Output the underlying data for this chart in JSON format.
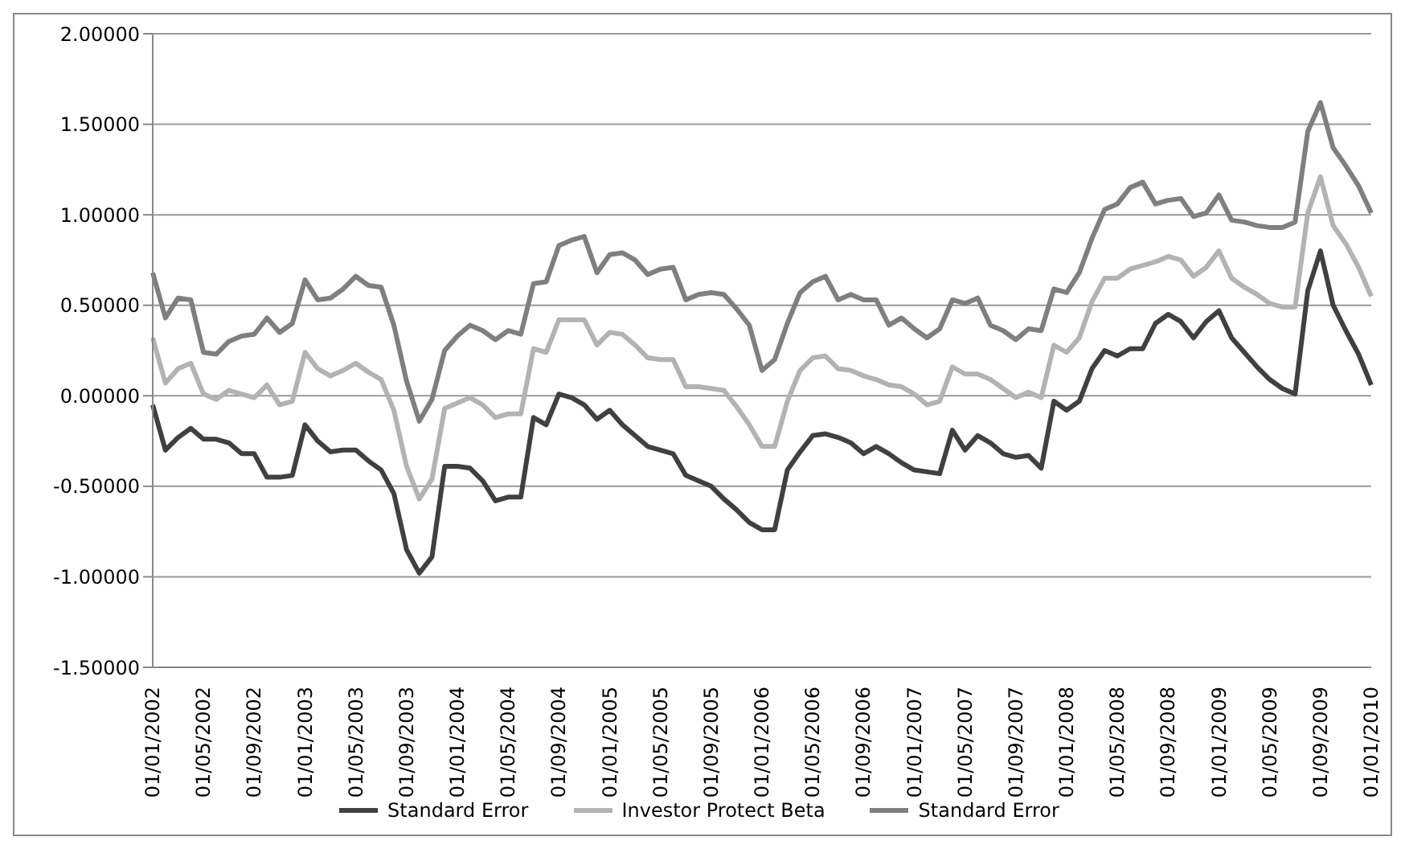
{
  "chart_data": {
    "type": "line",
    "categories": [
      "01/01/2002",
      null,
      null,
      null,
      "01/05/2002",
      null,
      null,
      null,
      "01/09/2002",
      null,
      null,
      null,
      "01/01/2003",
      null,
      null,
      null,
      "01/05/2003",
      null,
      null,
      null,
      "01/09/2003",
      null,
      null,
      null,
      "01/01/2004",
      null,
      null,
      null,
      "01/05/2004",
      null,
      null,
      null,
      "01/09/2004",
      null,
      null,
      null,
      "01/01/2005",
      null,
      null,
      null,
      "01/05/2005",
      null,
      null,
      null,
      "01/09/2005",
      null,
      null,
      null,
      "01/01/2006",
      null,
      null,
      null,
      "01/05/2006",
      null,
      null,
      null,
      "01/09/2006",
      null,
      null,
      null,
      "01/01/2007",
      null,
      null,
      null,
      "01/05/2007",
      null,
      null,
      null,
      "01/09/2007",
      null,
      null,
      null,
      "01/01/2008",
      null,
      null,
      null,
      "01/05/2008",
      null,
      null,
      null,
      "01/09/2008",
      null,
      null,
      null,
      "01/01/2009",
      null,
      null,
      null,
      "01/05/2009",
      null,
      null,
      null,
      "01/09/2009",
      null,
      null,
      null,
      "01/01/2010"
    ],
    "series": [
      {
        "name": "Standard Error",
        "color": "#404040",
        "values": [
          -0.05,
          -0.3,
          -0.23,
          -0.18,
          -0.24,
          -0.24,
          -0.26,
          -0.32,
          -0.32,
          -0.45,
          -0.45,
          -0.44,
          -0.16,
          -0.25,
          -0.31,
          -0.3,
          -0.3,
          -0.36,
          -0.41,
          -0.54,
          -0.85,
          -0.98,
          -0.89,
          -0.39,
          -0.39,
          -0.4,
          -0.47,
          -0.58,
          -0.56,
          -0.56,
          -0.12,
          -0.16,
          0.01,
          -0.01,
          -0.05,
          -0.13,
          -0.08,
          -0.16,
          -0.22,
          -0.28,
          -0.3,
          -0.32,
          -0.44,
          -0.47,
          -0.5,
          -0.57,
          -0.63,
          -0.7,
          -0.74,
          -0.74,
          -0.41,
          -0.31,
          -0.22,
          -0.21,
          -0.23,
          -0.26,
          -0.32,
          -0.28,
          -0.32,
          -0.37,
          -0.41,
          -0.42,
          -0.43,
          -0.19,
          -0.3,
          -0.22,
          -0.26,
          -0.32,
          -0.34,
          -0.33,
          -0.4,
          -0.03,
          -0.08,
          -0.03,
          0.15,
          0.25,
          0.22,
          0.26,
          0.26,
          0.4,
          0.45,
          0.41,
          0.32,
          0.41,
          0.47,
          0.32,
          0.24,
          0.16,
          0.09,
          0.04,
          0.01,
          0.58,
          0.8,
          0.5,
          0.36,
          0.23,
          0.06
        ]
      },
      {
        "name": "Investor Protect Beta",
        "color": "#b3b3b3",
        "values": [
          0.32,
          0.07,
          0.15,
          0.18,
          0.01,
          -0.02,
          0.03,
          0.01,
          -0.01,
          0.06,
          -0.05,
          -0.03,
          0.24,
          0.15,
          0.11,
          0.14,
          0.18,
          0.13,
          0.09,
          -0.08,
          -0.39,
          -0.57,
          -0.46,
          -0.07,
          -0.04,
          -0.01,
          -0.05,
          -0.12,
          -0.1,
          -0.1,
          0.26,
          0.24,
          0.42,
          0.42,
          0.42,
          0.28,
          0.35,
          0.34,
          0.28,
          0.21,
          0.2,
          0.2,
          0.05,
          0.05,
          0.04,
          0.03,
          -0.06,
          -0.16,
          -0.28,
          -0.28,
          -0.03,
          0.14,
          0.21,
          0.22,
          0.15,
          0.14,
          0.11,
          0.09,
          0.06,
          0.05,
          0.01,
          -0.05,
          -0.03,
          0.16,
          0.12,
          0.12,
          0.09,
          0.04,
          -0.01,
          0.02,
          -0.01,
          0.28,
          0.24,
          0.32,
          0.52,
          0.65,
          0.65,
          0.7,
          0.72,
          0.74,
          0.77,
          0.75,
          0.66,
          0.71,
          0.8,
          0.65,
          0.6,
          0.56,
          0.51,
          0.49,
          0.49,
          1.01,
          1.21,
          0.94,
          0.84,
          0.71,
          0.55
        ]
      },
      {
        "name": "Standard Error",
        "color": "#7f7f7f",
        "values": [
          0.68,
          0.43,
          0.54,
          0.53,
          0.24,
          0.23,
          0.3,
          0.33,
          0.34,
          0.43,
          0.35,
          0.4,
          0.64,
          0.53,
          0.54,
          0.59,
          0.66,
          0.61,
          0.6,
          0.39,
          0.08,
          -0.14,
          -0.02,
          0.25,
          0.33,
          0.39,
          0.36,
          0.31,
          0.36,
          0.34,
          0.62,
          0.63,
          0.83,
          0.86,
          0.88,
          0.68,
          0.78,
          0.79,
          0.75,
          0.67,
          0.7,
          0.71,
          0.53,
          0.56,
          0.57,
          0.56,
          0.48,
          0.39,
          0.14,
          0.2,
          0.4,
          0.57,
          0.63,
          0.66,
          0.53,
          0.56,
          0.53,
          0.53,
          0.39,
          0.43,
          0.37,
          0.32,
          0.37,
          0.53,
          0.51,
          0.54,
          0.39,
          0.36,
          0.31,
          0.37,
          0.36,
          0.59,
          0.57,
          0.68,
          0.87,
          1.03,
          1.06,
          1.15,
          1.18,
          1.06,
          1.08,
          1.09,
          0.99,
          1.01,
          1.11,
          0.97,
          0.96,
          0.94,
          0.93,
          0.93,
          0.96,
          1.46,
          1.62,
          1.37,
          1.27,
          1.16,
          1.01
        ]
      }
    ],
    "ylim": [
      -1.5,
      2
    ],
    "yticks": [
      {
        "value": -1.5,
        "label": "-1.50000"
      },
      {
        "value": -1,
        "label": "-1.00000"
      },
      {
        "value": -0.5,
        "label": "-0.50000"
      },
      {
        "value": 0,
        "label": "0.00000"
      },
      {
        "value": 0.5,
        "label": "0.50000"
      },
      {
        "value": 1,
        "label": "1.00000"
      },
      {
        "value": 1.5,
        "label": "1.50000"
      },
      {
        "value": 2,
        "label": "2.00000"
      }
    ],
    "grid": "y",
    "legend": "bottom",
    "marker": "none",
    "line_style": "solid"
  }
}
